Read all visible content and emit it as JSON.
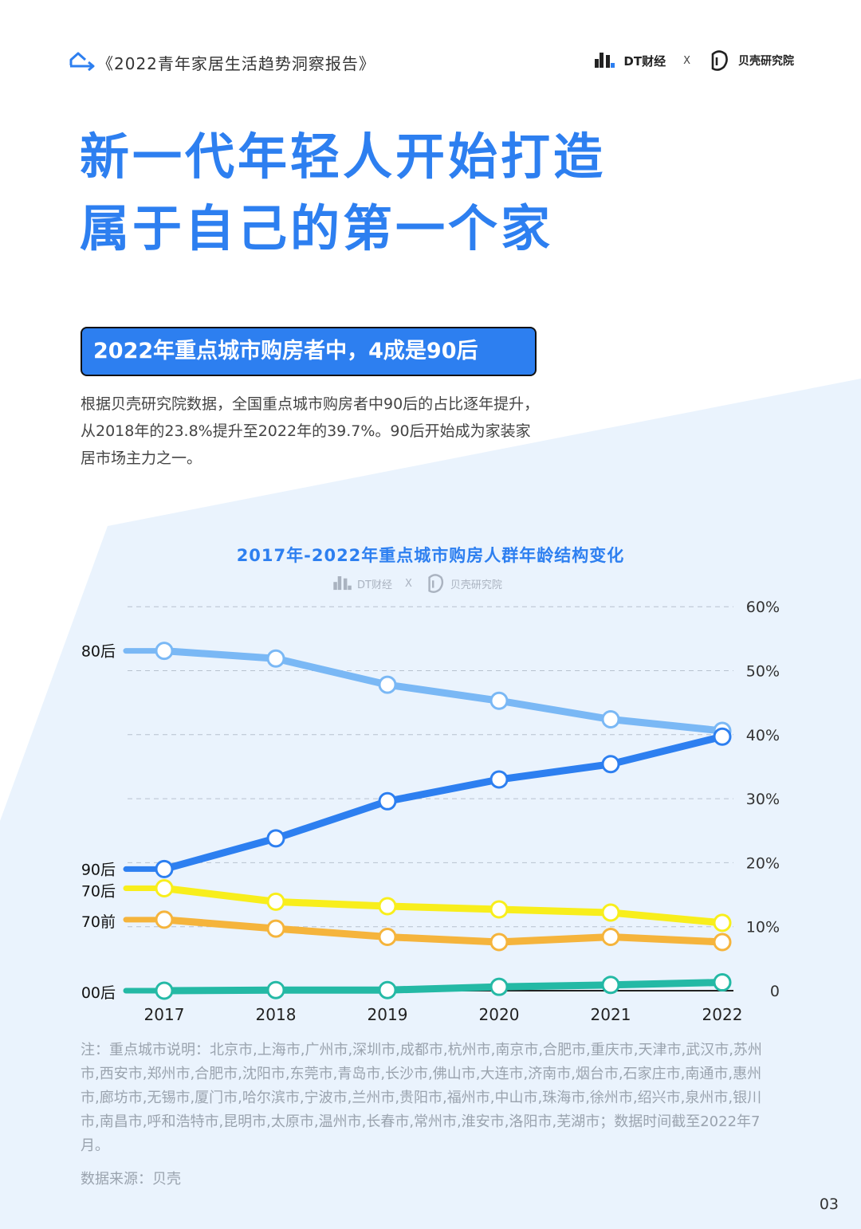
{
  "header": {
    "report_title": "《2022青年家居生活趋势洞察报告》",
    "brand_dt": "DT财经",
    "brand_x": "X",
    "brand_beike": "贝壳研究院"
  },
  "headline": {
    "line1": "新一代年轻人开始打造",
    "line2": "属于自己的第一个家"
  },
  "subhead": "2022年重点城市购房者中，4成是90后",
  "body_text": "根据贝壳研究院数据，全国重点城市购房者中90后的占比逐年提升，从2018年的23.8%提升至2022年的39.7%。90后开始成为家装家居市场主力之一。",
  "chart_brand": {
    "dt": "DT财经",
    "x": "X",
    "beike": "贝壳研究院"
  },
  "chart_data": {
    "type": "line",
    "title": "2017年-2022年重点城市购房人群年龄结构变化",
    "x": [
      "2017",
      "2018",
      "2019",
      "2020",
      "2021",
      "2022"
    ],
    "ylim": [
      0,
      60
    ],
    "yticks": [
      {
        "value": 0,
        "label": "0"
      },
      {
        "value": 10,
        "label": "10%"
      },
      {
        "value": 20,
        "label": "20%"
      },
      {
        "value": 30,
        "label": "30%"
      },
      {
        "value": 40,
        "label": "40%"
      },
      {
        "value": 50,
        "label": "50%"
      },
      {
        "value": 60,
        "label": "60%"
      }
    ],
    "grid": true,
    "series": [
      {
        "name": "80后",
        "color": "#7ab8f5",
        "values": [
          53.1,
          51.9,
          47.8,
          45.3,
          42.4,
          40.6
        ]
      },
      {
        "name": "90后",
        "color": "#2d7ff0",
        "values": [
          19.0,
          23.8,
          29.6,
          33.0,
          35.4,
          39.7
        ]
      },
      {
        "name": "70后",
        "color": "#f8ee1c",
        "values": [
          16.0,
          13.9,
          13.2,
          12.7,
          12.2,
          10.6
        ]
      },
      {
        "name": "70前",
        "color": "#f5b43c",
        "values": [
          11.1,
          9.7,
          8.4,
          7.6,
          8.4,
          7.6
        ]
      },
      {
        "name": "00后",
        "color": "#24b9a5",
        "values": [
          0.0,
          0.1,
          0.1,
          0.6,
          0.9,
          1.3
        ]
      }
    ]
  },
  "note": "注：重点城市说明：北京市,上海市,广州市,深圳市,成都市,杭州市,南京市,合肥市,重庆市,天津市,武汉市,苏州市,西安市,郑州市,合肥市,沈阳市,东莞市,青岛市,长沙市,佛山市,大连市,济南市,烟台市,石家庄市,南通市,惠州市,廊坊市,无锡市,厦门市,哈尔滨市,宁波市,兰州市,贵阳市,福州市,中山市,珠海市,徐州市,绍兴市,泉州市,银川市,南昌市,呼和浩特市,昆明市,太原市,温州市,长春市,常州市,淮安市,洛阳市,芜湖市；数据时间截至2022年7月。",
  "source": "数据来源：贝壳",
  "page_number": "03"
}
